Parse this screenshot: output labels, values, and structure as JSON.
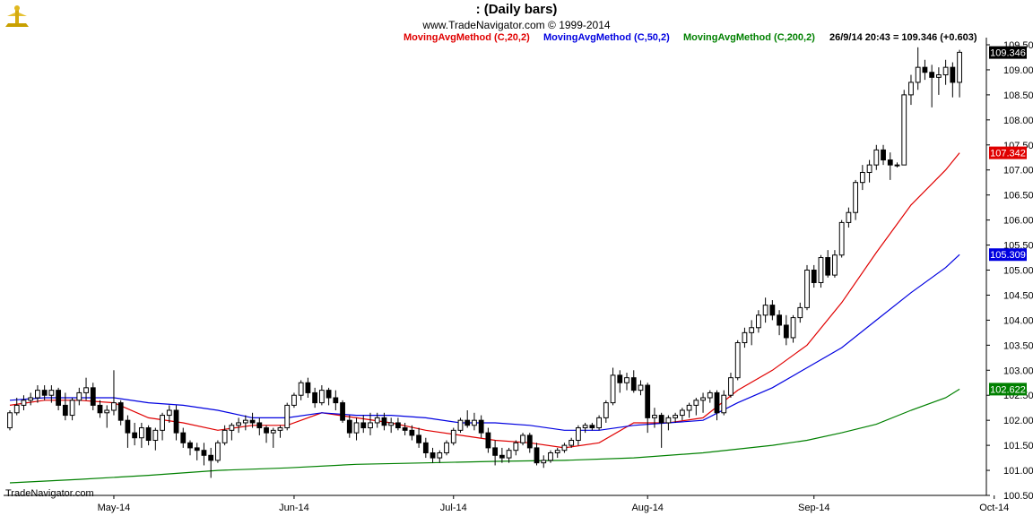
{
  "header": {
    "title": ":   (Daily bars)",
    "copyright": "www.TradeNavigator.com © 1999-2014"
  },
  "legend": [
    {
      "label": "MovingAvgMethod (C,20,2)",
      "color": "#e00000"
    },
    {
      "label": "MovingAvgMethod (C,50,2)",
      "color": "#0000e0"
    },
    {
      "label": "MovingAvgMethod (C,200,2)",
      "color": "#008000"
    }
  ],
  "last_quote": "26/9/14 20:43 = 109.346 (+0.603)",
  "footer": "TradeNavigator.com",
  "colors": {
    "up_fill": "#ffffff",
    "down_fill": "#000000",
    "ma20": "#e00000",
    "ma50": "#0000e0",
    "ma200": "#008000",
    "grid": "#cccccc"
  },
  "chart_data": {
    "type": "candlestick",
    "title": ":   (Daily bars)",
    "ylim": [
      100.5,
      109.5
    ],
    "y_ticks": [
      "100.500",
      "101.000",
      "101.500",
      "102.000",
      "102.500",
      "103.000",
      "103.500",
      "104.000",
      "104.500",
      "105.000",
      "105.500",
      "106.000",
      "106.500",
      "107.000",
      "107.500",
      "108.000",
      "108.500",
      "109.000",
      "109.500"
    ],
    "x_labels": [
      {
        "label": "May-14",
        "index": 15
      },
      {
        "label": "Jun-14",
        "index": 41
      },
      {
        "label": "Jul-14",
        "index": 64
      },
      {
        "label": "Aug-14",
        "index": 92
      },
      {
        "label": "Sep-14",
        "index": 116
      },
      {
        "label": "Oct-14",
        "index": 142
      }
    ],
    "bar_count": 141,
    "candles": [
      [
        0,
        101.85,
        102.2,
        101.8,
        102.15
      ],
      [
        1,
        102.15,
        102.45,
        102.1,
        102.3
      ],
      [
        2,
        102.3,
        102.5,
        102.2,
        102.4
      ],
      [
        3,
        102.4,
        102.55,
        102.3,
        102.45
      ],
      [
        4,
        102.45,
        102.7,
        102.35,
        102.6
      ],
      [
        5,
        102.6,
        102.7,
        102.4,
        102.5
      ],
      [
        6,
        102.5,
        102.7,
        102.35,
        102.6
      ],
      [
        7,
        102.6,
        102.65,
        102.2,
        102.3
      ],
      [
        8,
        102.3,
        102.55,
        102.0,
        102.1
      ],
      [
        9,
        102.1,
        102.45,
        102.0,
        102.4
      ],
      [
        10,
        102.4,
        102.65,
        102.3,
        102.55
      ],
      [
        11,
        102.55,
        102.85,
        102.4,
        102.65
      ],
      [
        12,
        102.65,
        102.75,
        102.2,
        102.3
      ],
      [
        13,
        102.3,
        102.4,
        102.05,
        102.15
      ],
      [
        14,
        102.15,
        102.3,
        101.85,
        102.2
      ],
      [
        15,
        102.2,
        103.0,
        102.1,
        102.35
      ],
      [
        16,
        102.35,
        102.4,
        101.9,
        102.0
      ],
      [
        17,
        102.0,
        102.1,
        101.45,
        101.75
      ],
      [
        18,
        101.75,
        101.95,
        101.5,
        101.65
      ],
      [
        19,
        101.65,
        101.95,
        101.45,
        101.85
      ],
      [
        20,
        101.85,
        101.9,
        101.5,
        101.6
      ],
      [
        21,
        101.6,
        101.85,
        101.4,
        101.8
      ],
      [
        22,
        101.8,
        102.15,
        101.6,
        102.1
      ],
      [
        23,
        102.1,
        102.3,
        101.95,
        102.2
      ],
      [
        24,
        102.2,
        102.3,
        101.6,
        101.75
      ],
      [
        25,
        101.75,
        101.85,
        101.45,
        101.55
      ],
      [
        26,
        101.55,
        101.6,
        101.3,
        101.45
      ],
      [
        27,
        101.45,
        101.55,
        101.2,
        101.4
      ],
      [
        28,
        101.4,
        101.55,
        101.1,
        101.3
      ],
      [
        29,
        101.3,
        101.45,
        100.85,
        101.2
      ],
      [
        30,
        101.2,
        101.6,
        101.15,
        101.55
      ],
      [
        31,
        101.55,
        101.9,
        101.5,
        101.8
      ],
      [
        32,
        101.8,
        101.95,
        101.6,
        101.9
      ],
      [
        33,
        101.9,
        102.05,
        101.75,
        101.95
      ],
      [
        34,
        101.95,
        102.1,
        101.8,
        102.0
      ],
      [
        35,
        102.0,
        102.15,
        101.85,
        101.95
      ],
      [
        36,
        101.95,
        102.05,
        101.7,
        101.85
      ],
      [
        37,
        101.85,
        101.9,
        101.55,
        101.75
      ],
      [
        38,
        101.75,
        101.85,
        101.45,
        101.8
      ],
      [
        39,
        101.8,
        101.9,
        101.65,
        101.85
      ],
      [
        40,
        101.85,
        102.35,
        101.8,
        102.3
      ],
      [
        41,
        102.3,
        102.55,
        102.25,
        102.5
      ],
      [
        42,
        102.5,
        102.8,
        102.4,
        102.75
      ],
      [
        43,
        102.75,
        102.85,
        102.45,
        102.55
      ],
      [
        44,
        102.55,
        102.65,
        102.25,
        102.35
      ],
      [
        45,
        102.35,
        102.7,
        102.3,
        102.6
      ],
      [
        46,
        102.6,
        102.65,
        102.3,
        102.45
      ],
      [
        47,
        102.45,
        102.6,
        102.2,
        102.35
      ],
      [
        48,
        102.35,
        102.4,
        101.95,
        102.0
      ],
      [
        49,
        102.0,
        102.1,
        101.65,
        101.75
      ],
      [
        50,
        101.75,
        102.05,
        101.6,
        101.95
      ],
      [
        51,
        101.95,
        102.1,
        101.75,
        101.85
      ],
      [
        52,
        101.85,
        102.15,
        101.7,
        101.95
      ],
      [
        53,
        101.95,
        102.15,
        101.85,
        102.05
      ],
      [
        54,
        102.05,
        102.15,
        101.8,
        101.9
      ],
      [
        55,
        101.9,
        102.05,
        101.75,
        101.95
      ],
      [
        56,
        101.95,
        102.05,
        101.8,
        101.85
      ],
      [
        57,
        101.85,
        101.95,
        101.7,
        101.8
      ],
      [
        58,
        101.8,
        101.9,
        101.6,
        101.7
      ],
      [
        59,
        101.7,
        101.85,
        101.45,
        101.55
      ],
      [
        60,
        101.55,
        101.65,
        101.25,
        101.35
      ],
      [
        61,
        101.35,
        101.45,
        101.15,
        101.25
      ],
      [
        62,
        101.25,
        101.4,
        101.15,
        101.35
      ],
      [
        63,
        101.35,
        101.6,
        101.3,
        101.55
      ],
      [
        64,
        101.55,
        101.85,
        101.5,
        101.8
      ],
      [
        65,
        101.8,
        102.05,
        101.75,
        102.0
      ],
      [
        66,
        102.0,
        102.2,
        101.85,
        101.9
      ],
      [
        67,
        101.9,
        102.15,
        101.8,
        102.0
      ],
      [
        68,
        102.0,
        102.1,
        101.65,
        101.75
      ],
      [
        69,
        101.75,
        101.85,
        101.35,
        101.45
      ],
      [
        70,
        101.45,
        101.6,
        101.1,
        101.3
      ],
      [
        71,
        101.3,
        101.45,
        101.15,
        101.25
      ],
      [
        72,
        101.25,
        101.45,
        101.15,
        101.4
      ],
      [
        73,
        101.4,
        101.6,
        101.3,
        101.55
      ],
      [
        74,
        101.55,
        101.75,
        101.5,
        101.7
      ],
      [
        75,
        101.7,
        101.75,
        101.35,
        101.45
      ],
      [
        76,
        101.45,
        101.55,
        101.1,
        101.15
      ],
      [
        77,
        101.15,
        101.3,
        101.05,
        101.2
      ],
      [
        78,
        101.2,
        101.4,
        101.15,
        101.35
      ],
      [
        79,
        101.35,
        101.45,
        101.25,
        101.4
      ],
      [
        80,
        101.4,
        101.55,
        101.35,
        101.5
      ],
      [
        81,
        101.5,
        101.65,
        101.45,
        101.6
      ],
      [
        82,
        101.6,
        101.9,
        101.5,
        101.85
      ],
      [
        83,
        101.85,
        101.95,
        101.75,
        101.9
      ],
      [
        84,
        101.9,
        101.95,
        101.8,
        101.85
      ],
      [
        85,
        101.85,
        102.1,
        101.8,
        102.05
      ],
      [
        86,
        102.05,
        102.4,
        101.95,
        102.35
      ],
      [
        87,
        102.35,
        103.05,
        102.3,
        102.9
      ],
      [
        88,
        102.9,
        103.0,
        102.55,
        102.75
      ],
      [
        89,
        102.75,
        102.95,
        102.6,
        102.85
      ],
      [
        90,
        102.85,
        103.0,
        102.55,
        102.6
      ],
      [
        91,
        102.6,
        102.8,
        102.5,
        102.7
      ],
      [
        92,
        102.7,
        102.75,
        101.75,
        102.05
      ],
      [
        93,
        102.05,
        102.25,
        101.85,
        102.1
      ],
      [
        94,
        102.1,
        102.15,
        101.45,
        101.95
      ],
      [
        95,
        101.95,
        102.1,
        101.8,
        102.05
      ],
      [
        96,
        102.05,
        102.15,
        101.95,
        102.1
      ],
      [
        97,
        102.1,
        102.25,
        102.0,
        102.2
      ],
      [
        98,
        102.2,
        102.35,
        102.05,
        102.3
      ],
      [
        99,
        102.3,
        102.45,
        102.1,
        102.4
      ],
      [
        100,
        102.4,
        102.55,
        102.15,
        102.45
      ],
      [
        101,
        102.45,
        102.6,
        102.35,
        102.55
      ],
      [
        102,
        102.55,
        102.6,
        102.0,
        102.15
      ],
      [
        103,
        102.15,
        102.6,
        102.1,
        102.5
      ],
      [
        104,
        102.5,
        102.95,
        102.45,
        102.85
      ],
      [
        105,
        102.85,
        103.6,
        102.8,
        103.55
      ],
      [
        106,
        103.55,
        103.85,
        103.45,
        103.75
      ],
      [
        107,
        103.75,
        104.0,
        103.5,
        103.85
      ],
      [
        108,
        103.85,
        104.2,
        103.75,
        104.1
      ],
      [
        109,
        104.1,
        104.45,
        103.95,
        104.3
      ],
      [
        110,
        104.3,
        104.4,
        104.0,
        104.1
      ],
      [
        111,
        104.1,
        104.2,
        103.7,
        103.9
      ],
      [
        112,
        103.9,
        104.1,
        103.5,
        103.65
      ],
      [
        113,
        103.65,
        104.1,
        103.55,
        104.05
      ],
      [
        114,
        104.05,
        104.35,
        103.95,
        104.25
      ],
      [
        115,
        104.25,
        105.1,
        104.2,
        105.0
      ],
      [
        116,
        105.0,
        105.1,
        104.65,
        104.75
      ],
      [
        117,
        104.75,
        105.3,
        104.65,
        105.25
      ],
      [
        118,
        105.25,
        105.4,
        104.85,
        104.9
      ],
      [
        119,
        104.9,
        105.4,
        104.85,
        105.3
      ],
      [
        120,
        105.3,
        106.0,
        105.25,
        105.95
      ],
      [
        121,
        105.95,
        106.25,
        105.85,
        106.15
      ],
      [
        122,
        106.15,
        106.8,
        106.0,
        106.75
      ],
      [
        123,
        106.75,
        107.1,
        106.6,
        106.95
      ],
      [
        124,
        106.95,
        107.2,
        106.75,
        107.1
      ],
      [
        125,
        107.1,
        107.5,
        107.0,
        107.4
      ],
      [
        126,
        107.4,
        107.5,
        107.1,
        107.2
      ],
      [
        127,
        107.2,
        107.35,
        106.8,
        107.1
      ],
      [
        128,
        107.1,
        107.15,
        107.05,
        107.1
      ],
      [
        129,
        107.1,
        108.6,
        107.1,
        108.5
      ],
      [
        130,
        108.5,
        108.9,
        108.3,
        108.75
      ],
      [
        131,
        108.75,
        109.45,
        108.6,
        109.05
      ],
      [
        132,
        109.05,
        109.2,
        108.8,
        108.95
      ],
      [
        133,
        108.95,
        109.1,
        108.25,
        108.85
      ],
      [
        134,
        108.85,
        109.05,
        108.5,
        108.9
      ],
      [
        135,
        108.9,
        109.2,
        108.7,
        109.05
      ],
      [
        136,
        109.05,
        109.15,
        108.45,
        108.75
      ],
      [
        137,
        108.75,
        109.4,
        108.45,
        109.35
      ]
    ],
    "series": [
      {
        "name": "MovingAvgMethod (C,20,2)",
        "color": "#e00000",
        "points": [
          [
            0,
            102.3
          ],
          [
            5,
            102.4
          ],
          [
            10,
            102.4
          ],
          [
            15,
            102.35
          ],
          [
            20,
            102.05
          ],
          [
            25,
            101.95
          ],
          [
            30,
            101.8
          ],
          [
            35,
            101.9
          ],
          [
            40,
            101.9
          ],
          [
            45,
            102.15
          ],
          [
            50,
            102.05
          ],
          [
            55,
            101.95
          ],
          [
            60,
            101.8
          ],
          [
            65,
            101.7
          ],
          [
            70,
            101.6
          ],
          [
            75,
            101.55
          ],
          [
            80,
            101.45
          ],
          [
            85,
            101.55
          ],
          [
            90,
            101.95
          ],
          [
            95,
            101.95
          ],
          [
            100,
            102.05
          ],
          [
            105,
            102.6
          ],
          [
            110,
            103.0
          ],
          [
            115,
            103.5
          ],
          [
            120,
            104.35
          ],
          [
            125,
            105.35
          ],
          [
            130,
            106.3
          ],
          [
            135,
            107.0
          ],
          [
            137,
            107.342
          ]
        ]
      },
      {
        "name": "MovingAvgMethod (C,50,2)",
        "color": "#0000e0",
        "points": [
          [
            0,
            102.4
          ],
          [
            5,
            102.45
          ],
          [
            10,
            102.45
          ],
          [
            15,
            102.45
          ],
          [
            20,
            102.35
          ],
          [
            25,
            102.3
          ],
          [
            30,
            102.2
          ],
          [
            35,
            102.05
          ],
          [
            40,
            102.05
          ],
          [
            45,
            102.15
          ],
          [
            50,
            102.1
          ],
          [
            55,
            102.1
          ],
          [
            60,
            102.05
          ],
          [
            65,
            101.95
          ],
          [
            70,
            101.95
          ],
          [
            75,
            101.9
          ],
          [
            80,
            101.8
          ],
          [
            85,
            101.8
          ],
          [
            90,
            101.9
          ],
          [
            95,
            101.95
          ],
          [
            100,
            102.0
          ],
          [
            105,
            102.35
          ],
          [
            110,
            102.65
          ],
          [
            115,
            103.05
          ],
          [
            120,
            103.45
          ],
          [
            125,
            104.0
          ],
          [
            130,
            104.55
          ],
          [
            135,
            105.05
          ],
          [
            137,
            105.309
          ]
        ]
      },
      {
        "name": "MovingAvgMethod (C,200,2)",
        "color": "#008000",
        "points": [
          [
            0,
            100.75
          ],
          [
            10,
            100.82
          ],
          [
            20,
            100.9
          ],
          [
            30,
            101.0
          ],
          [
            40,
            101.05
          ],
          [
            50,
            101.12
          ],
          [
            60,
            101.15
          ],
          [
            70,
            101.18
          ],
          [
            80,
            101.2
          ],
          [
            90,
            101.25
          ],
          [
            100,
            101.35
          ],
          [
            110,
            101.5
          ],
          [
            115,
            101.6
          ],
          [
            120,
            101.75
          ],
          [
            125,
            101.92
          ],
          [
            130,
            102.2
          ],
          [
            135,
            102.45
          ],
          [
            137,
            102.622
          ]
        ]
      }
    ],
    "price_flags": [
      {
        "label": "109.346",
        "value": 109.346,
        "bg": "#000000",
        "fg": "#ffffff"
      },
      {
        "label": "107.342",
        "value": 107.342,
        "bg": "#e00000",
        "fg": "#ffffff"
      },
      {
        "label": "105.309",
        "value": 105.309,
        "bg": "#0000e0",
        "fg": "#ffffff"
      },
      {
        "label": "102.622",
        "value": 102.622,
        "bg": "#008000",
        "fg": "#ffffff"
      }
    ]
  }
}
